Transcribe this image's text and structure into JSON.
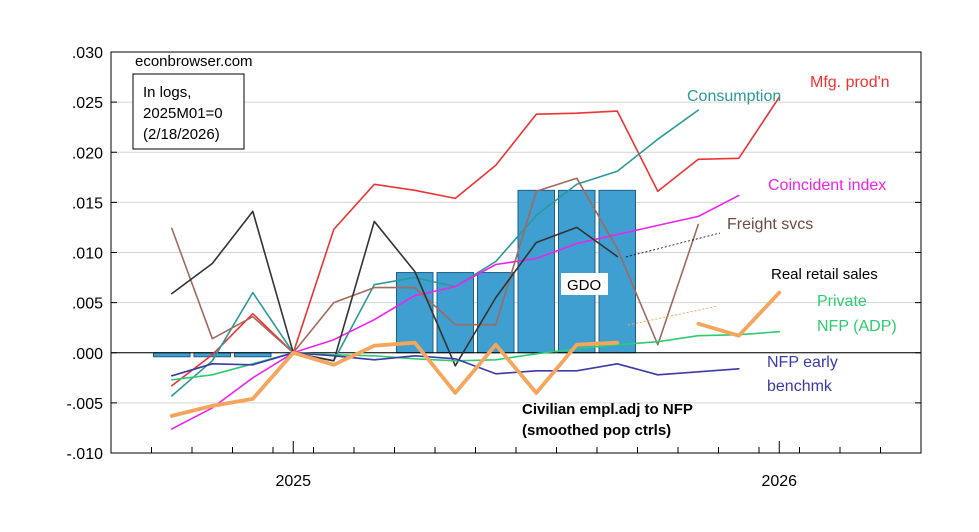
{
  "chart_data": {
    "type": "line",
    "source": "econbrowser.com",
    "note_lines": [
      "In logs,",
      "2025M01=0",
      "(2/18/2026)"
    ],
    "ylim": [
      -0.01,
      0.03
    ],
    "yticks": [
      {
        "value": 0.03,
        "label": ".030"
      },
      {
        "value": 0.025,
        "label": ".025"
      },
      {
        "value": 0.02,
        "label": ".020"
      },
      {
        "value": 0.015,
        "label": ".015"
      },
      {
        "value": 0.01,
        "label": ".010"
      },
      {
        "value": 0.005,
        "label": ".005"
      },
      {
        "value": 0.0,
        "label": ".000"
      },
      {
        "value": -0.005,
        "label": "-.005"
      },
      {
        "value": -0.01,
        "label": "-.010"
      }
    ],
    "x_months": [
      "2024-09",
      "2024-10",
      "2024-11",
      "2024-12",
      "2025-01",
      "2025-02",
      "2025-03",
      "2025-04",
      "2025-05",
      "2025-06",
      "2025-07",
      "2025-08",
      "2025-09",
      "2025-10",
      "2025-11",
      "2025-12",
      "2026-01",
      "2026-02",
      "2026-03",
      "2026-04"
    ],
    "xticks": [
      {
        "index": 4,
        "label": "2025"
      },
      {
        "index": 16,
        "label": "2026"
      }
    ],
    "bars": {
      "name": "GDO",
      "color": "#3f9fd0",
      "points": [
        {
          "month": "2024-10",
          "value": -0.0004
        },
        {
          "month": "2024-11",
          "value": -0.0004
        },
        {
          "month": "2024-12",
          "value": -0.0004
        },
        {
          "month": "2025-04",
          "value": 0.008
        },
        {
          "month": "2025-05",
          "value": 0.008
        },
        {
          "month": "2025-06",
          "value": 0.008
        },
        {
          "month": "2025-07",
          "value": 0.0162
        },
        {
          "month": "2025-08",
          "value": 0.0162
        },
        {
          "month": "2025-09",
          "value": 0.0162
        }
      ]
    },
    "series": [
      {
        "name": "Mfg. prod'n",
        "color": "#ee3333",
        "width": 1.6,
        "values": [
          null,
          -0.0033,
          -0.0002,
          0.0039,
          0.0,
          0.0123,
          0.0168,
          0.0162,
          0.0154,
          0.0187,
          0.0238,
          0.0239,
          0.0241,
          0.0161,
          0.0193,
          0.0194,
          0.0255,
          null,
          null,
          null
        ]
      },
      {
        "name": "Consumption",
        "color": "#2a9a96",
        "width": 1.6,
        "values": [
          null,
          -0.0043,
          -0.0008,
          0.006,
          0.0,
          -0.0008,
          0.0068,
          0.0075,
          0.0066,
          0.0091,
          0.0137,
          0.0168,
          0.0181,
          0.0213,
          0.0242,
          null,
          null,
          null,
          null,
          null
        ]
      },
      {
        "name": "Coincident index",
        "color": "#ee22ee",
        "width": 1.6,
        "values": [
          null,
          -0.0076,
          -0.0055,
          -0.0025,
          0.0,
          0.0013,
          0.0033,
          0.0057,
          0.0066,
          0.0088,
          0.0094,
          0.0109,
          0.0118,
          0.0127,
          0.0136,
          0.0157,
          null,
          null,
          null,
          null
        ]
      },
      {
        "name": "Freight svcs",
        "color": "#a06a5c",
        "width": 1.6,
        "values": [
          null,
          0.0124,
          0.0014,
          0.0036,
          0.0,
          0.005,
          0.0065,
          0.0065,
          0.0028,
          0.0028,
          0.0161,
          0.0174,
          0.0104,
          0.0008,
          0.0128,
          null,
          null,
          null,
          null,
          null
        ]
      },
      {
        "name": "Real retail sales",
        "color": "#333333",
        "width": 1.6,
        "values": [
          null,
          0.0059,
          0.0089,
          0.0141,
          0.0,
          -0.0008,
          0.0131,
          0.0081,
          -0.0013,
          0.0055,
          0.011,
          0.0125,
          0.0096,
          null,
          null,
          null,
          null,
          null,
          null,
          null
        ]
      },
      {
        "name": "Private NFP (ADP)",
        "color": "#2ecc71",
        "width": 1.6,
        "values": [
          null,
          -0.0027,
          -0.0022,
          -0.0011,
          0.0,
          -0.0002,
          -0.0003,
          -0.0006,
          -0.0008,
          -0.0007,
          -0.0001,
          0.0004,
          0.0008,
          0.0011,
          0.0017,
          0.0018,
          0.0021,
          null,
          null,
          null
        ]
      },
      {
        "name": "NFP early benchmk",
        "color": "#3a3aa8",
        "width": 1.6,
        "values": [
          null,
          -0.0023,
          -0.0011,
          -0.0012,
          0.0,
          -0.0003,
          -0.0007,
          -0.0003,
          -0.0006,
          -0.0021,
          -0.0018,
          -0.0018,
          -0.0011,
          -0.0022,
          -0.0019,
          -0.0016,
          null,
          null,
          null,
          null
        ]
      },
      {
        "name": "Civilian empl.adj to NFP (smoothed pop ctrls)",
        "color": "#f5a55c",
        "width": 3.8,
        "values": [
          null,
          -0.0063,
          -0.0053,
          -0.0046,
          0.0,
          -0.0012,
          0.0007,
          0.001,
          -0.004,
          0.0008,
          -0.004,
          0.0008,
          0.001,
          null,
          0.0029,
          0.0017,
          0.006,
          null,
          null,
          null
        ]
      }
    ],
    "labels": {
      "mfg": "Mfg. prod'n",
      "consumption": "Consumption",
      "coincident": "Coincident index",
      "freight": "Freight svcs",
      "retail": "Real retail sales",
      "adp_1": "Private",
      "adp_2": "NFP (ADP)",
      "nfp_1": "NFP early",
      "nfp_2": "benchmk",
      "civ_1": "Civilian empl.adj to NFP",
      "civ_2": "(smoothed pop ctrls)",
      "gdo": "GDO"
    },
    "grid": true
  }
}
